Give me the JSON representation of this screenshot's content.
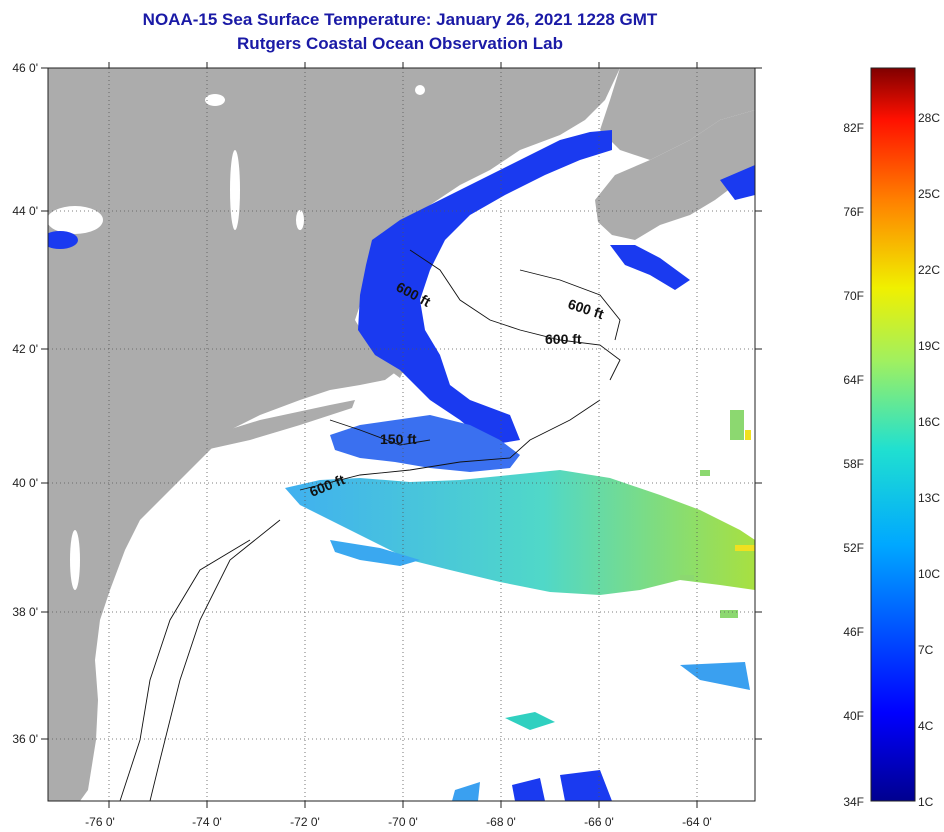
{
  "header": {
    "title": "NOAA-15 Sea Surface Temperature:  January 26, 2021 1228 GMT",
    "subtitle": "Rutgers Coastal Ocean Observation Lab"
  },
  "axes": {
    "lon_labels": [
      "-76 0'",
      "-74 0'",
      "-72 0'",
      "-70 0'",
      "-68 0'",
      "-66 0'",
      "-64 0'"
    ],
    "lat_labels": [
      "46 0'",
      "44 0'",
      "42 0'",
      "40 0'",
      "38 0'",
      "36 0'"
    ]
  },
  "contours": {
    "labels": [
      "600 ft",
      "600 ft",
      "600 ft",
      "150 ft",
      "600 ft"
    ]
  },
  "colorbar": {
    "fahrenheit": [
      "82F",
      "76F",
      "70F",
      "64F",
      "58F",
      "52F",
      "46F",
      "40F",
      "34F"
    ],
    "celsius": [
      "28C",
      "25C",
      "22C",
      "19C",
      "16C",
      "13C",
      "10C",
      "7C",
      "4C",
      "1C"
    ]
  },
  "colors": {
    "land": "#acacac",
    "ocean_nodata": "#ffffff",
    "title": "#1a1aa6",
    "sst_cold": "#1414e0",
    "sst_mid": "#3aa0f0",
    "sst_warm": "#b8e040"
  }
}
